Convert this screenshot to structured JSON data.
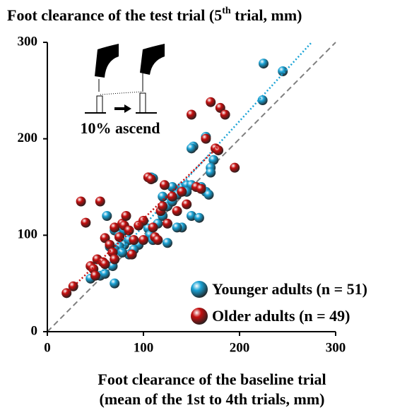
{
  "chart_data": {
    "type": "scatter",
    "title": [
      "Foot clearance of the test trial (5",
      "th",
      " trial, mm)"
    ],
    "xlabel": [
      "Foot clearance of the baseline trial",
      "(mean of the 1st to 4th trials, mm)"
    ],
    "annotation": "10% ascend",
    "xlim": [
      0,
      300
    ],
    "ylim": [
      0,
      300
    ],
    "xticks": [
      0,
      100,
      200,
      300
    ],
    "yticks": [
      0,
      100,
      200,
      300
    ],
    "legend": "lower right",
    "series": [
      {
        "name": "Younger adults (n = 51)",
        "color": "#1aa3d6",
        "x": [
          225,
          245,
          224,
          165,
          152,
          150,
          173,
          170,
          170,
          108,
          110,
          120,
          130,
          140,
          145,
          150,
          160,
          165,
          168,
          135,
          145,
          125,
          130,
          150,
          158,
          140,
          135,
          125,
          105,
          107,
          110,
          115,
          120,
          95,
          90,
          85,
          80,
          75,
          70,
          78,
          65,
          62,
          70,
          75,
          80,
          85,
          68,
          70,
          55,
          45,
          60
        ],
        "values": [
          278,
          270,
          240,
          202,
          192,
          190,
          178,
          170,
          165,
          160,
          159,
          140,
          150,
          150,
          152,
          152,
          150,
          145,
          142,
          142,
          145,
          130,
          135,
          120,
          118,
          108,
          108,
          92,
          107,
          100,
          95,
          112,
          120,
          90,
          85,
          80,
          90,
          88,
          85,
          82,
          88,
          120,
          105,
          100,
          105,
          95,
          68,
          50,
          58,
          55,
          60
        ],
        "trendline": {
          "x": [
            50,
            275
          ],
          "values": [
            55,
            300
          ]
        }
      },
      {
        "name": "Older adults (n = 49)",
        "color": "#c40f0f",
        "x": [
          20,
          27,
          35,
          40,
          45,
          48,
          50,
          52,
          55,
          58,
          60,
          65,
          68,
          70,
          75,
          78,
          80,
          82,
          85,
          88,
          90,
          100,
          105,
          108,
          110,
          112,
          115,
          118,
          120,
          122,
          130,
          135,
          140,
          145,
          150,
          155,
          160,
          165,
          170,
          175,
          178,
          180,
          185,
          195,
          70,
          95,
          100,
          125,
          60
        ],
        "values": [
          40,
          47,
          135,
          113,
          68,
          65,
          58,
          75,
          135,
          72,
          97,
          90,
          82,
          108,
          98,
          112,
          110,
          120,
          105,
          80,
          95,
          115,
          160,
          158,
          108,
          98,
          95,
          125,
          130,
          152,
          140,
          125,
          145,
          132,
          225,
          150,
          148,
          200,
          238,
          190,
          188,
          232,
          225,
          170,
          75,
          110,
          95,
          112,
          70
        ],
        "trendline": {
          "x": [
            20,
            178
          ],
          "values": [
            40,
            192
          ]
        }
      }
    ]
  }
}
